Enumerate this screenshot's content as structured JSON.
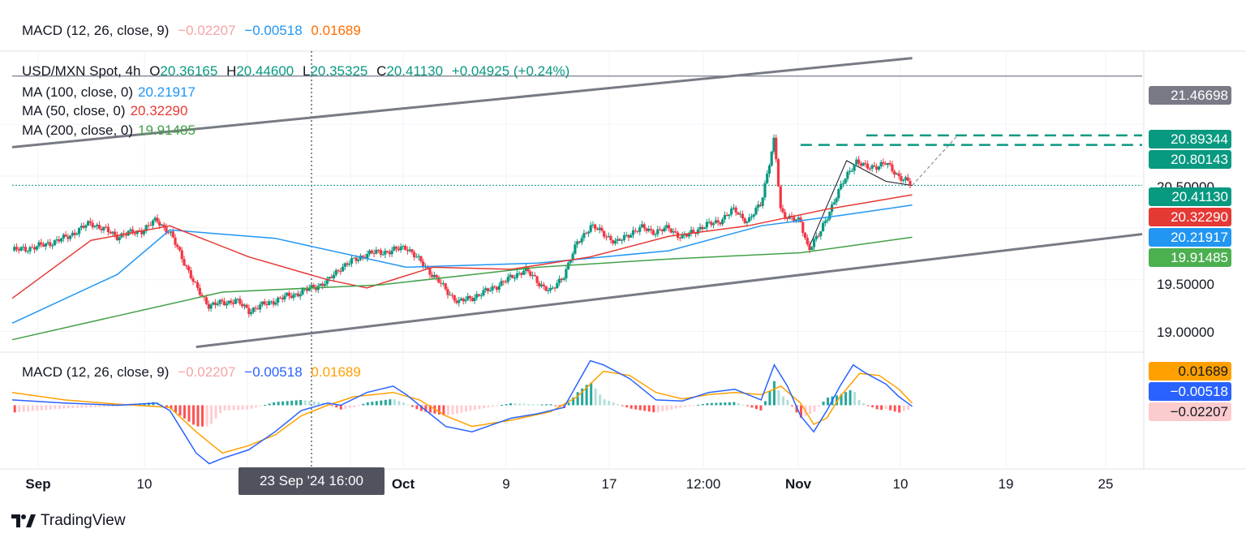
{
  "macd_header": {
    "label": "MACD (12, 26, close, 9)",
    "hist": "−0.02207",
    "macd": "−0.00518",
    "signal": "0.01689"
  },
  "price_header": {
    "symbol": "USD/MXN Spot, 4h",
    "open_label": "O",
    "open": "20.36165",
    "high_label": "H",
    "high": "20.44600",
    "low_label": "L",
    "low": "20.35325",
    "close_label": "C",
    "close": "20.41130",
    "change": "+0.04925 (+0.24%)"
  },
  "ma_legend": [
    {
      "label": "MA (100, close, 0)",
      "value": "20.21917",
      "color": "#2196f3"
    },
    {
      "label": "MA (50, close, 0)",
      "value": "20.32290",
      "color": "#e53935"
    },
    {
      "label": "MA (200, close, 0)",
      "value": "19.91485",
      "color": "#43a047"
    }
  ],
  "price_tags": [
    {
      "value": "21.46698",
      "bg": "#787b86",
      "fg": "#ffffff"
    },
    {
      "value": "20.89344",
      "bg": "#089981",
      "fg": "#ffffff"
    },
    {
      "value": "20.80143",
      "bg": "#089981",
      "fg": "#ffffff"
    },
    {
      "value": "20.41130",
      "bg": "#089981",
      "fg": "#ffffff"
    },
    {
      "value": "20.32290",
      "bg": "#e53935",
      "fg": "#ffffff"
    },
    {
      "value": "20.21917",
      "bg": "#2196f3",
      "fg": "#ffffff"
    },
    {
      "value": "19.91485",
      "bg": "#4caf50",
      "fg": "#ffffff"
    }
  ],
  "price_axis": [
    "20.50000",
    "19.50000",
    "19.00000"
  ],
  "macd_tags": [
    {
      "value": "0.01689",
      "bg": "#ffa000",
      "fg": "#131722"
    },
    {
      "value": "−0.00518",
      "bg": "#2962ff",
      "fg": "#ffffff"
    },
    {
      "value": "−0.02207",
      "bg": "#fccbcd",
      "fg": "#131722"
    }
  ],
  "x_axis": [
    {
      "label": "Sep",
      "bold": true
    },
    {
      "label": "10",
      "bold": false
    },
    {
      "label": "Oct",
      "bold": true
    },
    {
      "label": "9",
      "bold": false
    },
    {
      "label": "17",
      "bold": false
    },
    {
      "label": "12:00",
      "bold": false
    },
    {
      "label": "Nov",
      "bold": true
    },
    {
      "label": "10",
      "bold": false
    },
    {
      "label": "19",
      "bold": false
    },
    {
      "label": "25",
      "bold": false
    }
  ],
  "crosshair": "23 Sep '24   16:00",
  "brand": "TradingView",
  "chart_data": {
    "type": "candlestick",
    "title": "USD/MXN Spot, 4h",
    "ylim": [
      18.8,
      21.7
    ],
    "x_range_days": [
      0,
      86
    ],
    "price_path": [
      [
        0,
        19.78
      ],
      [
        2,
        19.82
      ],
      [
        4,
        19.9
      ],
      [
        6,
        20.05
      ],
      [
        8,
        19.92
      ],
      [
        10,
        19.98
      ],
      [
        11,
        20.08
      ],
      [
        12,
        19.95
      ],
      [
        13,
        19.7
      ],
      [
        14,
        19.42
      ],
      [
        15,
        19.25
      ],
      [
        17,
        19.3
      ],
      [
        18,
        19.2
      ],
      [
        20,
        19.3
      ],
      [
        22,
        19.38
      ],
      [
        24,
        19.48
      ],
      [
        25,
        19.62
      ],
      [
        27,
        19.75
      ],
      [
        29,
        19.78
      ],
      [
        30,
        19.82
      ],
      [
        31,
        19.68
      ],
      [
        32,
        19.55
      ],
      [
        33,
        19.4
      ],
      [
        34,
        19.28
      ],
      [
        36,
        19.38
      ],
      [
        37,
        19.45
      ],
      [
        38,
        19.52
      ],
      [
        39,
        19.6
      ],
      [
        40,
        19.48
      ],
      [
        41,
        19.38
      ],
      [
        42,
        19.55
      ],
      [
        43,
        19.85
      ],
      [
        44,
        20.02
      ],
      [
        45,
        19.95
      ],
      [
        46,
        19.85
      ],
      [
        47,
        19.95
      ],
      [
        48,
        20.0
      ],
      [
        49,
        19.96
      ],
      [
        50,
        20.0
      ],
      [
        51,
        19.9
      ],
      [
        52,
        19.98
      ],
      [
        54,
        20.08
      ],
      [
        55,
        20.18
      ],
      [
        56,
        20.05
      ],
      [
        57,
        20.25
      ],
      [
        58,
        20.85
      ],
      [
        58.5,
        20.15
      ],
      [
        60,
        20.05
      ],
      [
        60.6,
        19.8
      ],
      [
        61.5,
        19.95
      ],
      [
        62.5,
        20.25
      ],
      [
        63.5,
        20.5
      ],
      [
        64.2,
        20.65
      ],
      [
        65,
        20.58
      ],
      [
        66.5,
        20.62
      ],
      [
        67.5,
        20.5
      ],
      [
        68.5,
        20.41
      ]
    ],
    "ma100": [
      [
        0,
        19.08
      ],
      [
        8,
        19.55
      ],
      [
        12,
        19.98
      ],
      [
        20,
        19.9
      ],
      [
        30,
        19.62
      ],
      [
        40,
        19.66
      ],
      [
        50,
        19.78
      ],
      [
        57,
        20.02
      ],
      [
        63,
        20.12
      ],
      [
        68.5,
        20.22
      ]
    ],
    "ma50": [
      [
        0,
        19.32
      ],
      [
        6,
        19.88
      ],
      [
        12,
        20.02
      ],
      [
        18,
        19.72
      ],
      [
        24,
        19.5
      ],
      [
        27,
        19.42
      ],
      [
        32,
        19.62
      ],
      [
        38,
        19.6
      ],
      [
        44,
        19.72
      ],
      [
        50,
        19.92
      ],
      [
        56,
        20.02
      ],
      [
        62,
        20.18
      ],
      [
        68.5,
        20.32
      ]
    ],
    "ma200": [
      [
        0,
        18.92
      ],
      [
        8,
        19.15
      ],
      [
        16,
        19.38
      ],
      [
        28,
        19.45
      ],
      [
        40,
        19.62
      ],
      [
        50,
        19.7
      ],
      [
        60,
        19.76
      ],
      [
        68.5,
        19.91
      ]
    ],
    "trendlines": [
      {
        "name": "upper-channel",
        "from": [
          0,
          20.78
        ],
        "to": [
          68.5,
          21.64
        ]
      },
      {
        "name": "lower-channel",
        "from": [
          14,
          18.85
        ],
        "to": [
          86,
          19.94
        ]
      }
    ],
    "levels": [
      {
        "name": "resistance-1",
        "value": 20.89344,
        "from": 65,
        "to": 86,
        "style": "dashed"
      },
      {
        "name": "resistance-2",
        "value": 20.80143,
        "from": 60,
        "to": 86,
        "style": "dashed"
      },
      {
        "name": "horizontal",
        "value": 21.46698,
        "from": 0,
        "to": 86,
        "style": "solid"
      },
      {
        "name": "last-price",
        "value": 20.4113,
        "from": 0,
        "to": 86,
        "style": "dotted"
      }
    ],
    "macd": {
      "ylim": [
        -0.6,
        0.5
      ],
      "macd_line": [
        [
          0,
          0.05
        ],
        [
          4,
          0.02
        ],
        [
          8,
          0.0
        ],
        [
          11,
          0.02
        ],
        [
          12,
          -0.05
        ],
        [
          13,
          -0.25
        ],
        [
          14,
          -0.45
        ],
        [
          15,
          -0.55
        ],
        [
          16,
          -0.5
        ],
        [
          18,
          -0.42
        ],
        [
          20,
          -0.25
        ],
        [
          22,
          -0.05
        ],
        [
          24,
          0.02
        ],
        [
          25,
          0.0
        ],
        [
          27,
          0.12
        ],
        [
          29,
          0.18
        ],
        [
          30,
          0.1
        ],
        [
          31,
          0.0
        ],
        [
          33,
          -0.2
        ],
        [
          35,
          -0.25
        ],
        [
          38,
          -0.12
        ],
        [
          40,
          -0.08
        ],
        [
          42,
          -0.02
        ],
        [
          43,
          0.2
        ],
        [
          44,
          0.42
        ],
        [
          45,
          0.38
        ],
        [
          47,
          0.25
        ],
        [
          49,
          0.05
        ],
        [
          51,
          0.04
        ],
        [
          53,
          0.12
        ],
        [
          55,
          0.15
        ],
        [
          57,
          0.05
        ],
        [
          58,
          0.38
        ],
        [
          59,
          0.18
        ],
        [
          60,
          -0.1
        ],
        [
          61,
          -0.25
        ],
        [
          62,
          -0.05
        ],
        [
          63,
          0.18
        ],
        [
          64,
          0.38
        ],
        [
          65,
          0.3
        ],
        [
          66.5,
          0.2
        ],
        [
          67.5,
          0.08
        ],
        [
          68.5,
          -0.01
        ]
      ],
      "signal_line": [
        [
          0,
          0.12
        ],
        [
          4,
          0.05
        ],
        [
          8,
          0.01
        ],
        [
          12,
          -0.02
        ],
        [
          14,
          -0.25
        ],
        [
          16,
          -0.45
        ],
        [
          18,
          -0.38
        ],
        [
          20,
          -0.28
        ],
        [
          22,
          -0.1
        ],
        [
          24,
          0.0
        ],
        [
          26,
          0.08
        ],
        [
          29,
          0.12
        ],
        [
          31,
          0.05
        ],
        [
          33,
          -0.1
        ],
        [
          35,
          -0.2
        ],
        [
          38,
          -0.14
        ],
        [
          41,
          -0.06
        ],
        [
          43,
          0.08
        ],
        [
          45,
          0.32
        ],
        [
          47,
          0.28
        ],
        [
          49,
          0.12
        ],
        [
          51,
          0.06
        ],
        [
          53,
          0.1
        ],
        [
          55,
          0.12
        ],
        [
          57,
          0.1
        ],
        [
          58.5,
          0.18
        ],
        [
          60,
          0.02
        ],
        [
          61,
          -0.18
        ],
        [
          62,
          -0.12
        ],
        [
          63,
          0.08
        ],
        [
          64.5,
          0.3
        ],
        [
          66,
          0.28
        ],
        [
          67.5,
          0.15
        ],
        [
          68.5,
          0.02
        ]
      ]
    }
  }
}
